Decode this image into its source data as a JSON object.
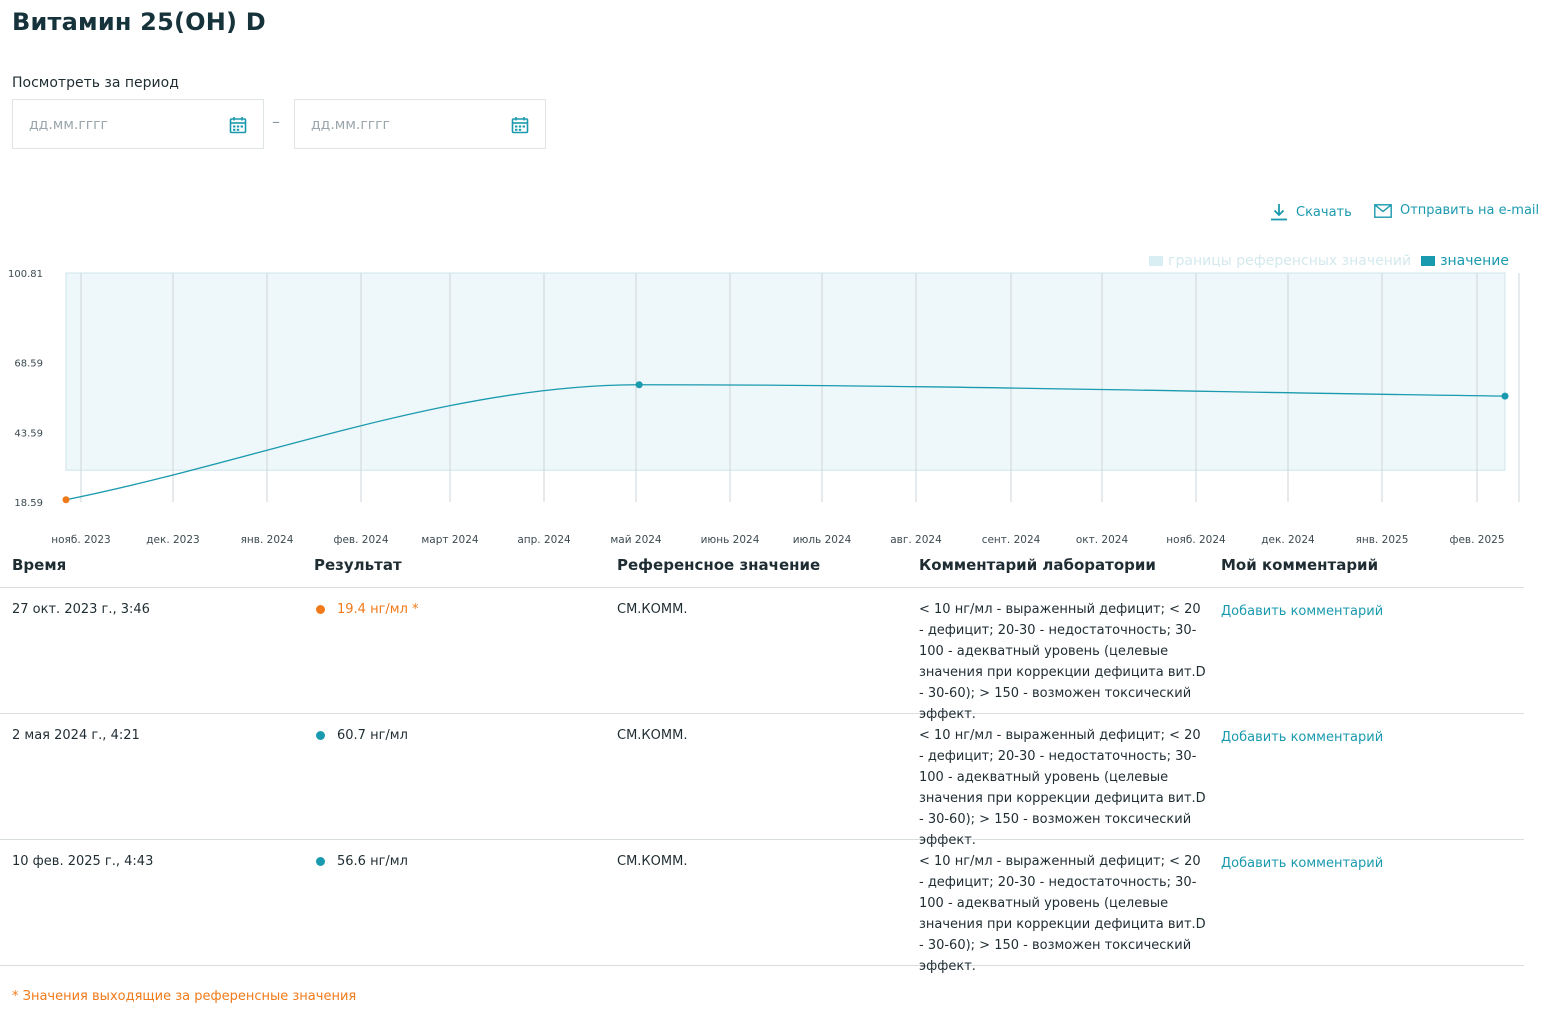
{
  "page": {
    "title": "Витамин 25(OH) D"
  },
  "period": {
    "label": "Посмотреть за период",
    "from_placeholder": "дд.мм.гггг",
    "to_placeholder": "дд.мм.гггг",
    "separator": "–"
  },
  "actions": {
    "download": "Скачать",
    "email": "Отправить на e-mail"
  },
  "legend": {
    "reference": "границы референсных значений",
    "value": "значение"
  },
  "colors": {
    "accent": "#1a9aae",
    "warning": "#f07a1a",
    "reference_fill": "#e3f1f5",
    "reference_legend": "#d9eef3"
  },
  "icons": {
    "calendar": "calendar-icon",
    "download": "download-icon",
    "email": "email-icon",
    "status_dot": "status-dot-icon"
  },
  "chart_data": {
    "type": "line",
    "title": "",
    "xlabel": "",
    "ylabel": "",
    "y_ticks": [
      "18.59",
      "43.59",
      "68.59",
      "100.81"
    ],
    "ylim": [
      18.59,
      100.81
    ],
    "x_ticks": [
      "нояб. 2023",
      "дек. 2023",
      "янв. 2024",
      "фев. 2024",
      "март 2024",
      "апр. 2024",
      "май 2024",
      "июнь 2024",
      "июль 2024",
      "авг. 2024",
      "сент. 2024",
      "окт. 2024",
      "нояб. 2024",
      "дек. 2024",
      "янв. 2025",
      "фев. 2025"
    ],
    "x_range": [
      "2023-10-27",
      "2025-02-10"
    ],
    "reference_band": [
      30,
      100.81
    ],
    "grid": true,
    "legend_position": "top-right",
    "series": [
      {
        "name": "значение",
        "points": [
          {
            "x": "2023-10-27",
            "y": 19.4,
            "out_of_range": true
          },
          {
            "x": "2024-05-02",
            "y": 60.7,
            "out_of_range": false
          },
          {
            "x": "2025-02-10",
            "y": 56.6,
            "out_of_range": false
          }
        ]
      }
    ]
  },
  "table": {
    "headers": {
      "time": "Время",
      "result": "Результат",
      "reference": "Референсное значение",
      "lab_comment": "Комментарий лаборатории",
      "my_comment": "Мой комментарий"
    },
    "rows": [
      {
        "time": "27 окт. 2023 г., 3:46",
        "result": "19.4 нг/мл *",
        "out_of_range": true,
        "reference": "СМ.КОММ.",
        "lab_comment": "< 10 нг/мл - выраженный дефицит; < 20 - дефицит; 20-30 - недостаточность; 30-100 - адекватный уровень (целевые значения при коррекции дефицита вит.D - 30-60); > 150 - возможен токсический эффект.",
        "my_comment": "Добавить комментарий"
      },
      {
        "time": "2 мая 2024 г., 4:21",
        "result": "60.7 нг/мл",
        "out_of_range": false,
        "reference": "СМ.КОММ.",
        "lab_comment": "< 10 нг/мл - выраженный дефицит; < 20 - дефицит; 20-30 - недостаточность; 30-100 - адекватный уровень (целевые значения при коррекции дефицита вит.D - 30-60); > 150 - возможен токсический эффект.",
        "my_comment": "Добавить комментарий"
      },
      {
        "time": "10 фев. 2025 г., 4:43",
        "result": "56.6 нг/мл",
        "out_of_range": false,
        "reference": "СМ.КОММ.",
        "lab_comment": "< 10 нг/мл - выраженный дефицит; < 20 - дефицит; 20-30 - недостаточность; 30-100 - адекватный уровень (целевые значения при коррекции дефицита вит.D - 30-60); > 150 - возможен токсический эффект.",
        "my_comment": "Добавить комментарий"
      }
    ]
  },
  "footnote": "* Значения выходящие за референсные значения"
}
